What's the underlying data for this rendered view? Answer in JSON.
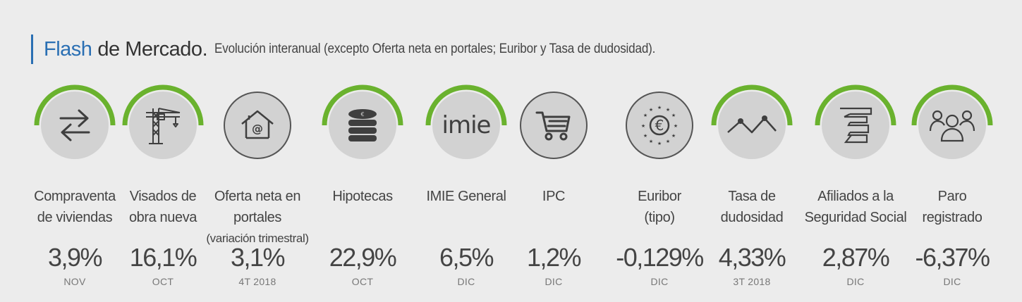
{
  "header": {
    "flash": "Flash",
    "mercado": "de Mercado.",
    "subtitle": "Evolución interanual (excepto Oferta neta en portales; Euribor y Tasa de dudosidad)."
  },
  "colors": {
    "accent": "#2a6fb3",
    "arc": "#6ab22e",
    "circle": "#d2d2d2",
    "icon": "#3f3f3f"
  },
  "indicators": [
    {
      "label_1": "Compraventa",
      "label_2": "de viviendas",
      "value": "3,9%",
      "period": "NOV",
      "icon": "exchange-arrows-icon",
      "arc": true
    },
    {
      "label_1": "Visados de",
      "label_2": "obra nueva",
      "value": "16,1%",
      "period": "OCT",
      "icon": "crane-icon",
      "arc": true
    },
    {
      "label_1": "Oferta neta en portales",
      "label_2": "(variación trimestral)",
      "value": "3,1%",
      "period": "4T 2018",
      "icon": "house-at-icon",
      "arc": false
    },
    {
      "label_1": "Hipotecas",
      "label_2": "",
      "value": "22,9%",
      "period": "OCT",
      "icon": "coin-stack-euro-icon",
      "arc": true
    },
    {
      "label_1": "IMIE General",
      "label_2": "",
      "value": "6,5%",
      "period": "DIC",
      "icon": "imie-logo",
      "logo_text": "imie",
      "arc": true
    },
    {
      "label_1": "IPC",
      "label_2": "",
      "value": "1,2%",
      "period": "DIC",
      "icon": "shopping-cart-icon",
      "arc": false
    },
    {
      "label_1": "Euribor",
      "label_2": "(tipo)",
      "value": "-0,129%",
      "period": "DIC",
      "icon": "euro-stars-icon",
      "arc": false
    },
    {
      "label_1": "Tasa de",
      "label_2": "dudosidad",
      "value": "4,33%",
      "period": "3T 2018",
      "icon": "line-trend-icon",
      "arc": true
    },
    {
      "label_1": "Afiliados a la",
      "label_2": "Seguridad Social",
      "value": "2,87%",
      "period": "DIC",
      "icon": "social-security-icon",
      "arc": true
    },
    {
      "label_1": "Paro",
      "label_2": "registrado",
      "value": "-6,37%",
      "period": "DIC",
      "icon": "people-group-icon",
      "arc": true
    }
  ]
}
